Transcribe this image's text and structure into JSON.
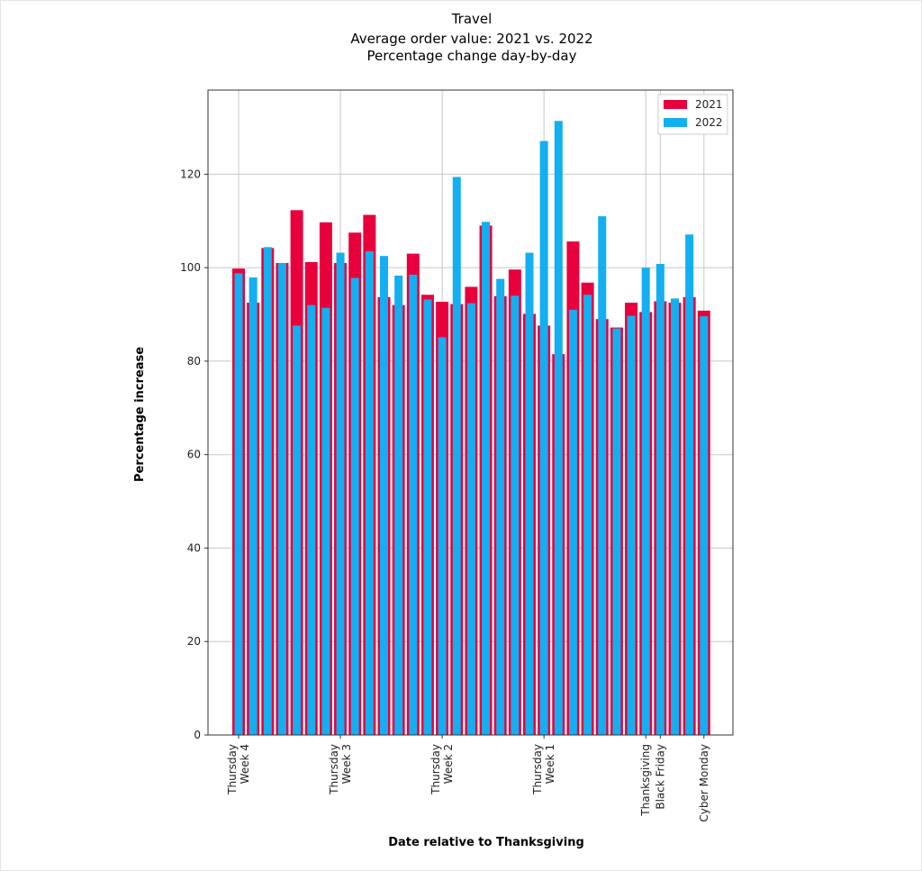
{
  "chart_data": {
    "type": "bar",
    "title_lines": [
      "Travel",
      "Average order value: 2021 vs. 2022",
      "Percentage change day-by-day"
    ],
    "xlabel": "Date relative to Thanksgiving",
    "ylabel": "Percentage increase",
    "ylim": [
      0,
      138
    ],
    "yticks": [
      0,
      20,
      40,
      60,
      80,
      100,
      120
    ],
    "grid": true,
    "legend_position": "top-right",
    "x_tick_labels": [
      {
        "day": 0,
        "lines": [
          "Thursday",
          "Week 4"
        ]
      },
      {
        "day": 7,
        "lines": [
          "Thursday",
          "Week 3"
        ]
      },
      {
        "day": 14,
        "lines": [
          "Thursday",
          "Week 2"
        ]
      },
      {
        "day": 21,
        "lines": [
          "Thursday",
          "Week 1"
        ]
      },
      {
        "day": 28,
        "lines": [
          "Thanksgiving"
        ]
      },
      {
        "day": 29,
        "lines": [
          "Black Friday"
        ]
      },
      {
        "day": 32,
        "lines": [
          "Cyber Monday"
        ]
      }
    ],
    "day_numbers": [
      0,
      1,
      2,
      3,
      4,
      5,
      6,
      7,
      8,
      9,
      10,
      11,
      12,
      13,
      14,
      15,
      16,
      17,
      18,
      19,
      20,
      21,
      22,
      23,
      24,
      25,
      26,
      27,
      28,
      29,
      30,
      31,
      32
    ],
    "series": [
      {
        "name": "2021",
        "color": "#e8003d",
        "values": [
          99.8,
          92.5,
          104.2,
          101.0,
          112.3,
          101.2,
          109.7,
          101.0,
          107.5,
          111.3,
          93.7,
          92.0,
          103.0,
          94.2,
          92.7,
          92.2,
          95.9,
          109.0,
          93.9,
          99.6,
          90.1,
          87.6,
          81.5,
          105.6,
          96.8,
          89.0,
          87.2,
          92.5,
          90.5,
          92.8,
          92.5,
          93.7,
          90.8
        ]
      },
      {
        "name": "2022",
        "color": "#13aff0",
        "values": [
          98.8,
          97.9,
          104.4,
          101.0,
          87.6,
          92.0,
          91.4,
          103.2,
          97.8,
          103.5,
          102.5,
          98.3,
          98.5,
          93.2,
          85.1,
          119.4,
          92.4,
          109.8,
          97.6,
          94.0,
          103.2,
          127.1,
          131.4,
          91.0,
          94.2,
          111.0,
          87.0,
          89.7,
          100.0,
          100.8,
          93.4,
          107.1,
          89.6
        ]
      }
    ]
  }
}
